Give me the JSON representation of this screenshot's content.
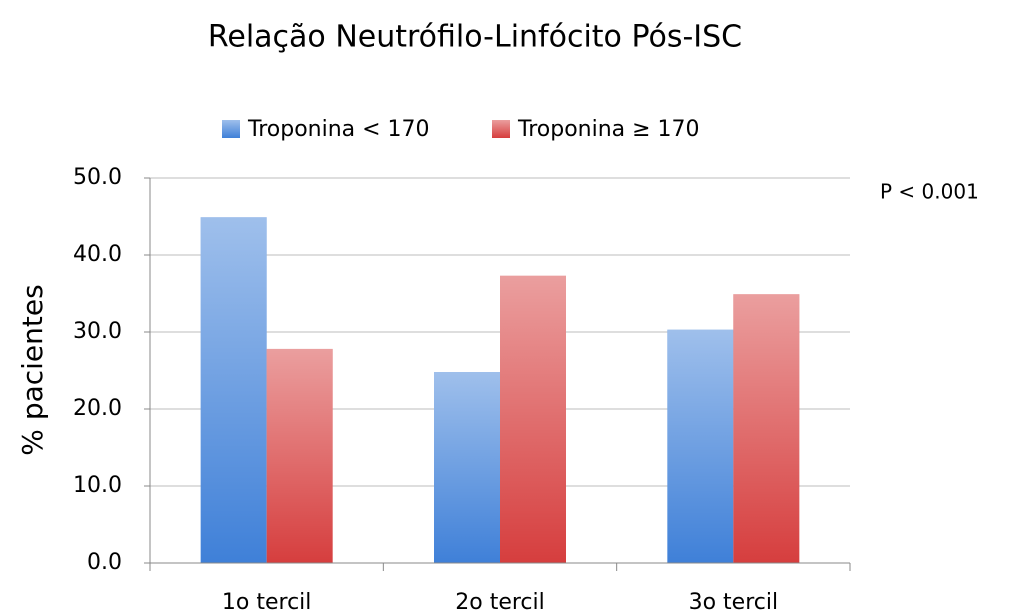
{
  "chart_data": {
    "type": "bar",
    "title": "Relação Neutrófilo-Linfócito Pós-ISC",
    "y_label": "% pacientes",
    "annotation": "P < 0.001",
    "categories": [
      "1o tercil",
      "2o tercil",
      "3o tercil"
    ],
    "series": [
      {
        "name": "Troponina < 170",
        "color": "#3f80d8",
        "values": [
          44.9,
          24.8,
          30.3
        ]
      },
      {
        "name": "Troponina ≥ 170",
        "color": "#d63e3e",
        "values": [
          27.8,
          37.3,
          34.9
        ]
      }
    ],
    "ylim": [
      0,
      50
    ],
    "yticks": [
      {
        "value": 0,
        "label": "0.0"
      },
      {
        "value": 10,
        "label": "10.0"
      },
      {
        "value": 20,
        "label": "20.0"
      },
      {
        "value": 30,
        "label": "30.0"
      },
      {
        "value": 40,
        "label": "40.0"
      },
      {
        "value": 50,
        "label": "50.0"
      }
    ],
    "grid": true,
    "legend": "top"
  }
}
